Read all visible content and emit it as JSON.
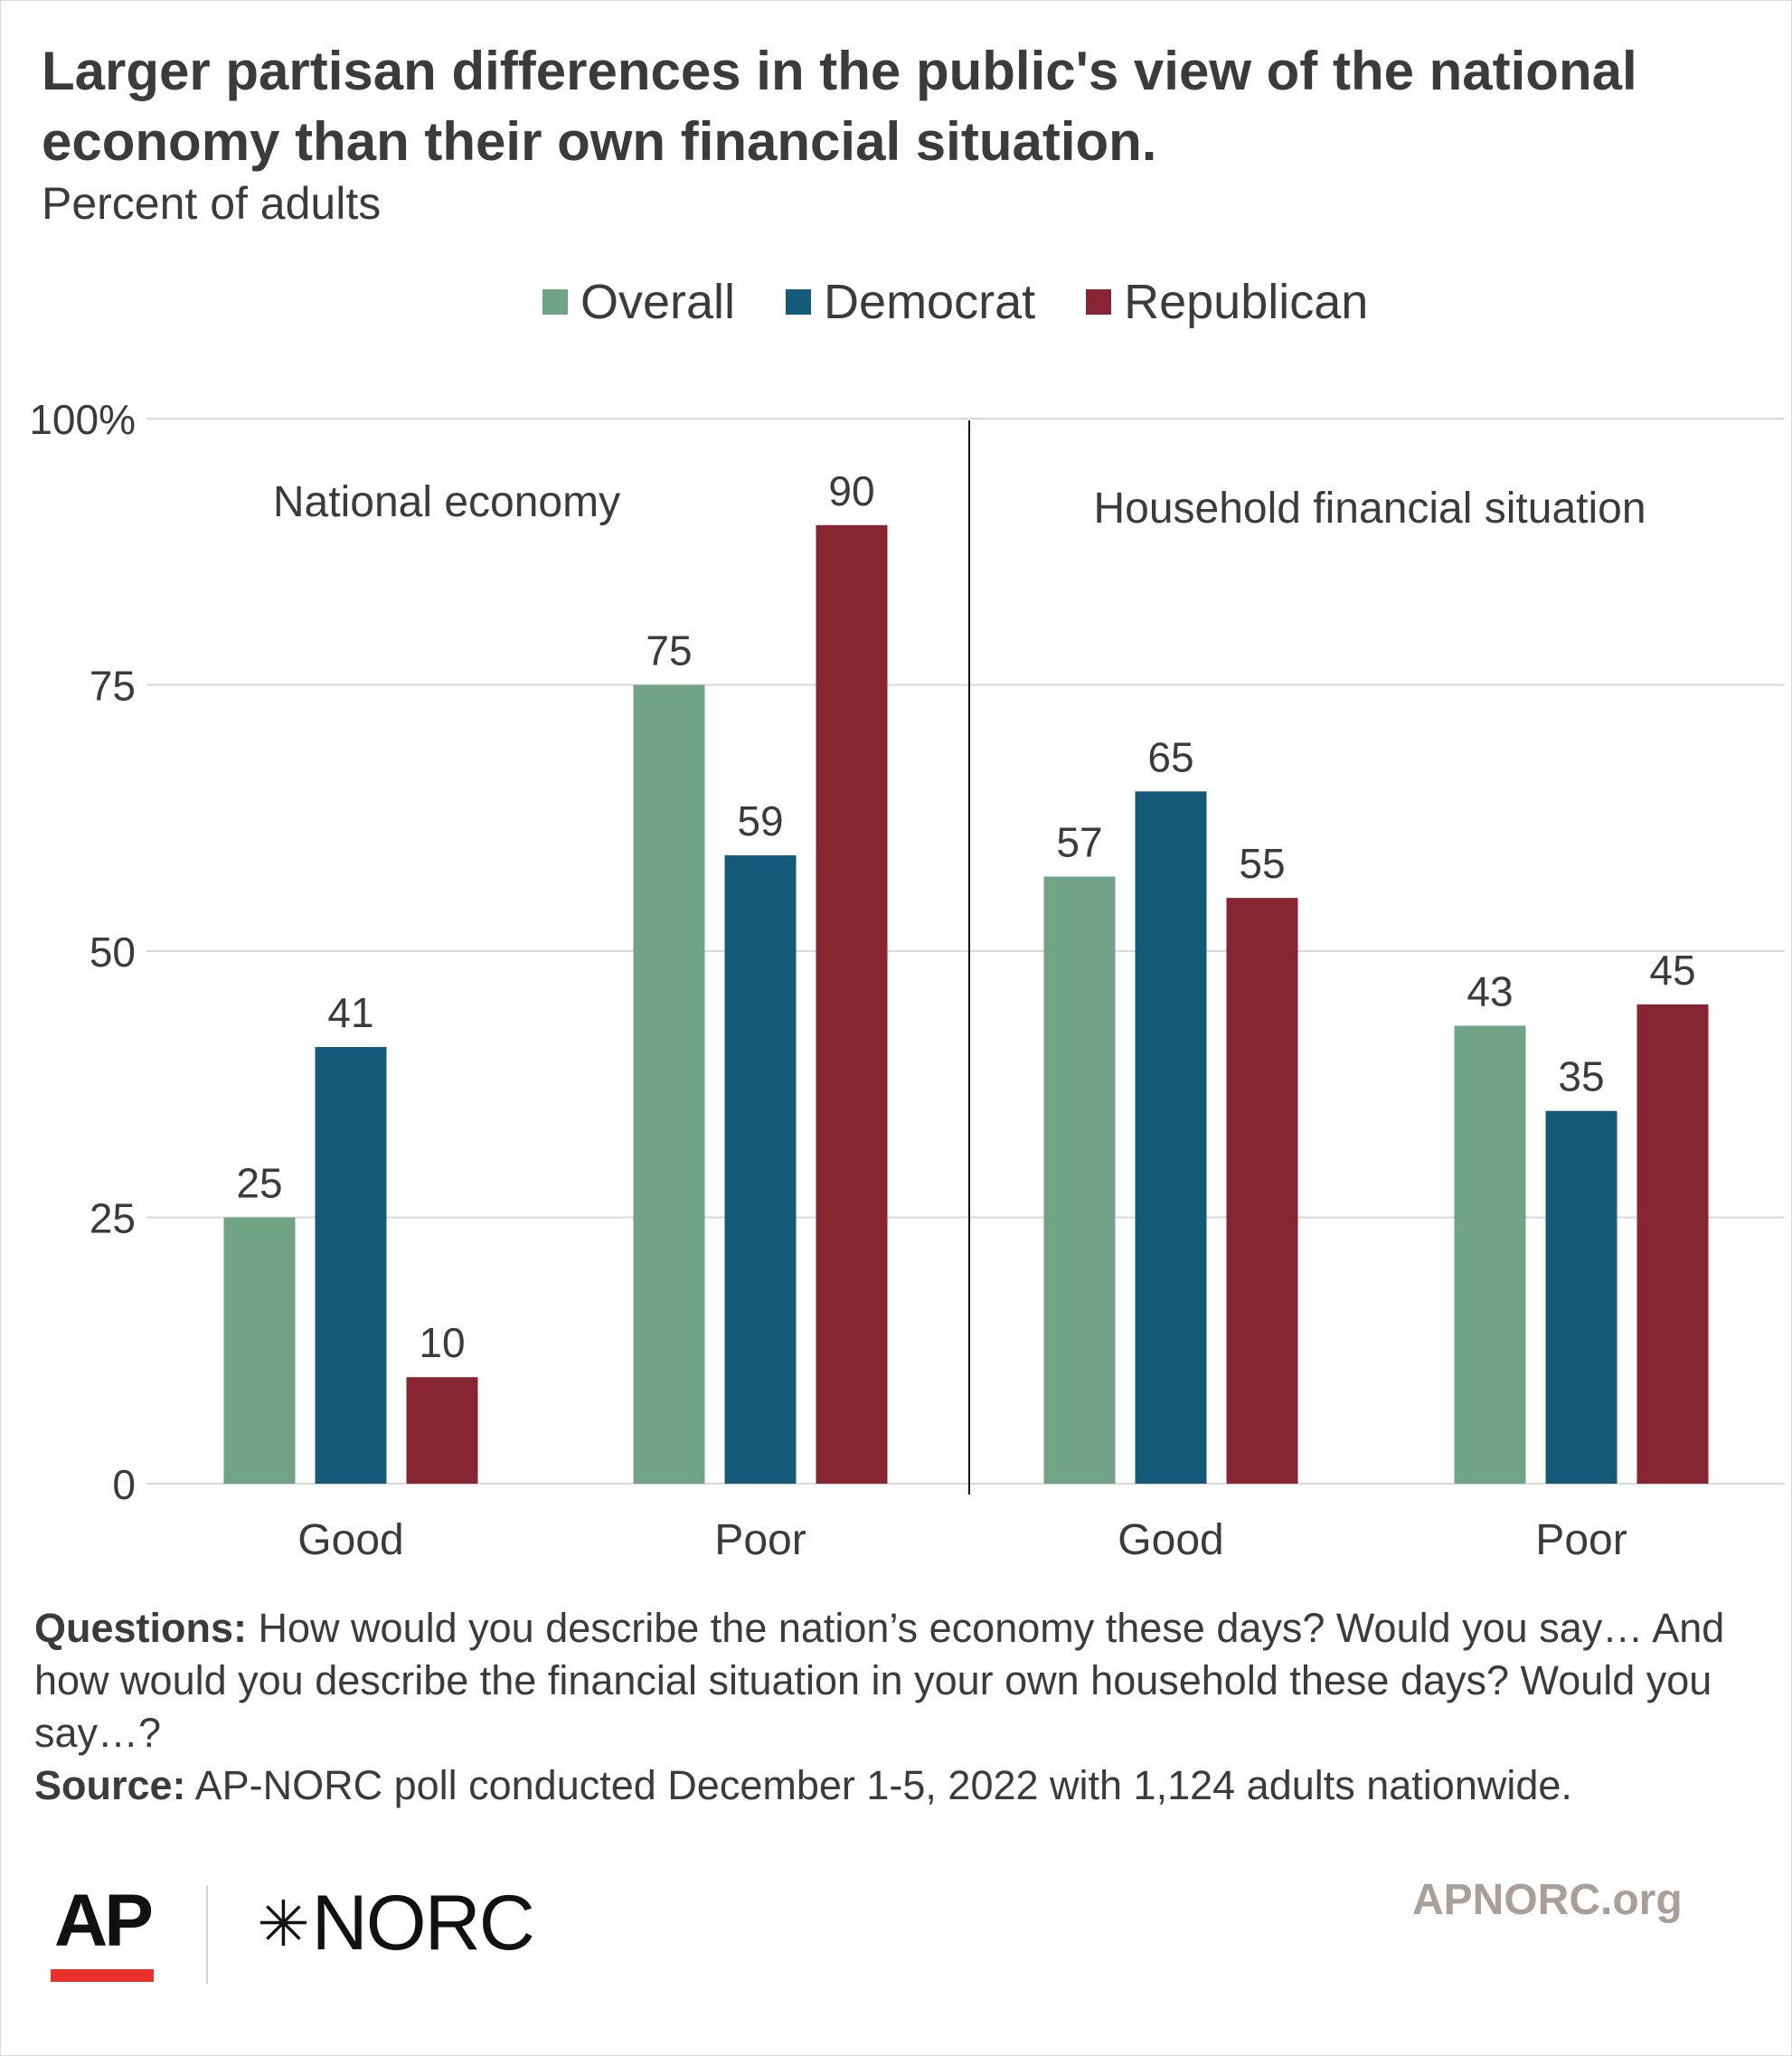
{
  "title": "Larger partisan differences in the public's view of the national economy than their own financial situation.",
  "subtitle": "Percent of adults",
  "colors": {
    "overall": "#71a487",
    "democrat": "#165a7a",
    "republican": "#872533",
    "grid": "#d9d9d9",
    "text": "#3b3b3b"
  },
  "legend": [
    {
      "label": "Overall",
      "color": "#71a487"
    },
    {
      "label": "Democrat",
      "color": "#165a7a"
    },
    {
      "label": "Republican",
      "color": "#872533"
    }
  ],
  "chart_data": {
    "type": "bar",
    "ylim": [
      0,
      100
    ],
    "yticks": [
      0,
      25,
      50,
      75,
      100
    ],
    "ytick_labels": [
      "0",
      "25",
      "50",
      "75",
      "100%"
    ],
    "grid": true,
    "legend_position": "top-center",
    "panels": [
      {
        "label": "National economy",
        "categories": [
          "Good",
          "Poor"
        ]
      },
      {
        "label": "Household financial situation",
        "categories": [
          "Good",
          "Poor"
        ]
      }
    ],
    "categories": [
      "Good",
      "Poor",
      "Good",
      "Poor"
    ],
    "series": [
      {
        "name": "Overall",
        "color": "#71a487",
        "values": [
          25,
          75,
          57,
          43
        ]
      },
      {
        "name": "Democrat",
        "color": "#165a7a",
        "values": [
          41,
          59,
          65,
          35
        ]
      },
      {
        "name": "Republican",
        "color": "#872533",
        "values": [
          10,
          90,
          55,
          45
        ]
      }
    ]
  },
  "footnote": {
    "questions_label": "Questions:",
    "questions_text": " How would you describe the nation’s economy these days? Would you say… And how would you describe the financial situation in your own household these days? Would you say…?",
    "source_label": "Source:",
    "source_text": " AP-NORC poll conducted December 1-5, 2022 with 1,124 adults nationwide."
  },
  "logos": {
    "ap": "AP",
    "norc_star": "✳",
    "norc": "NORC"
  },
  "site_url": "APNORC.org"
}
